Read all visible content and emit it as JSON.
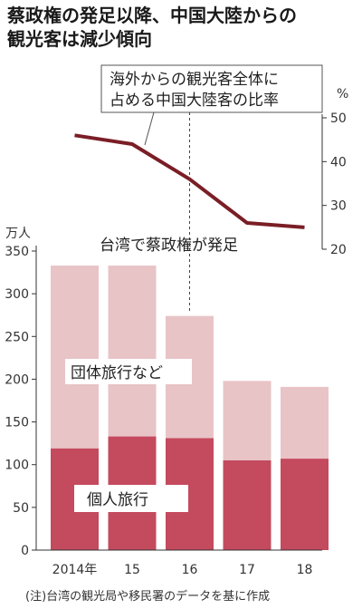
{
  "chart_data": {
    "type": "bar",
    "title": [
      "蔡政権の発足以降、中国大陸からの",
      "観光客は減少傾向"
    ],
    "categories": [
      "2014年",
      "15",
      "16",
      "17",
      "18"
    ],
    "bar_unit": "万人",
    "ylim": [
      0,
      350
    ],
    "yticks": [
      0,
      50,
      100,
      150,
      200,
      250,
      300,
      350
    ],
    "series": [
      {
        "name": "個人旅行",
        "values": [
          119,
          133,
          131,
          105,
          107
        ],
        "color": "#c44a5e"
      },
      {
        "name": "団体旅行など",
        "values": [
          214,
          200,
          143,
          93,
          84
        ],
        "color": "#e8c4c7"
      }
    ],
    "line_series": {
      "values": [
        46,
        44,
        36,
        26,
        25
      ],
      "unit": "%",
      "ylim": [
        20,
        50
      ],
      "yticks": [
        20,
        30,
        40,
        50
      ],
      "color": "#7a1e26",
      "annotation": [
        "海外からの観光客全体に",
        "占める中国大陸客の比率"
      ]
    },
    "event_marker": {
      "category": "16",
      "label": "台湾で蔡政権が発足"
    },
    "note": "(注)台湾の観光局や移民署のデータを基に作成"
  }
}
